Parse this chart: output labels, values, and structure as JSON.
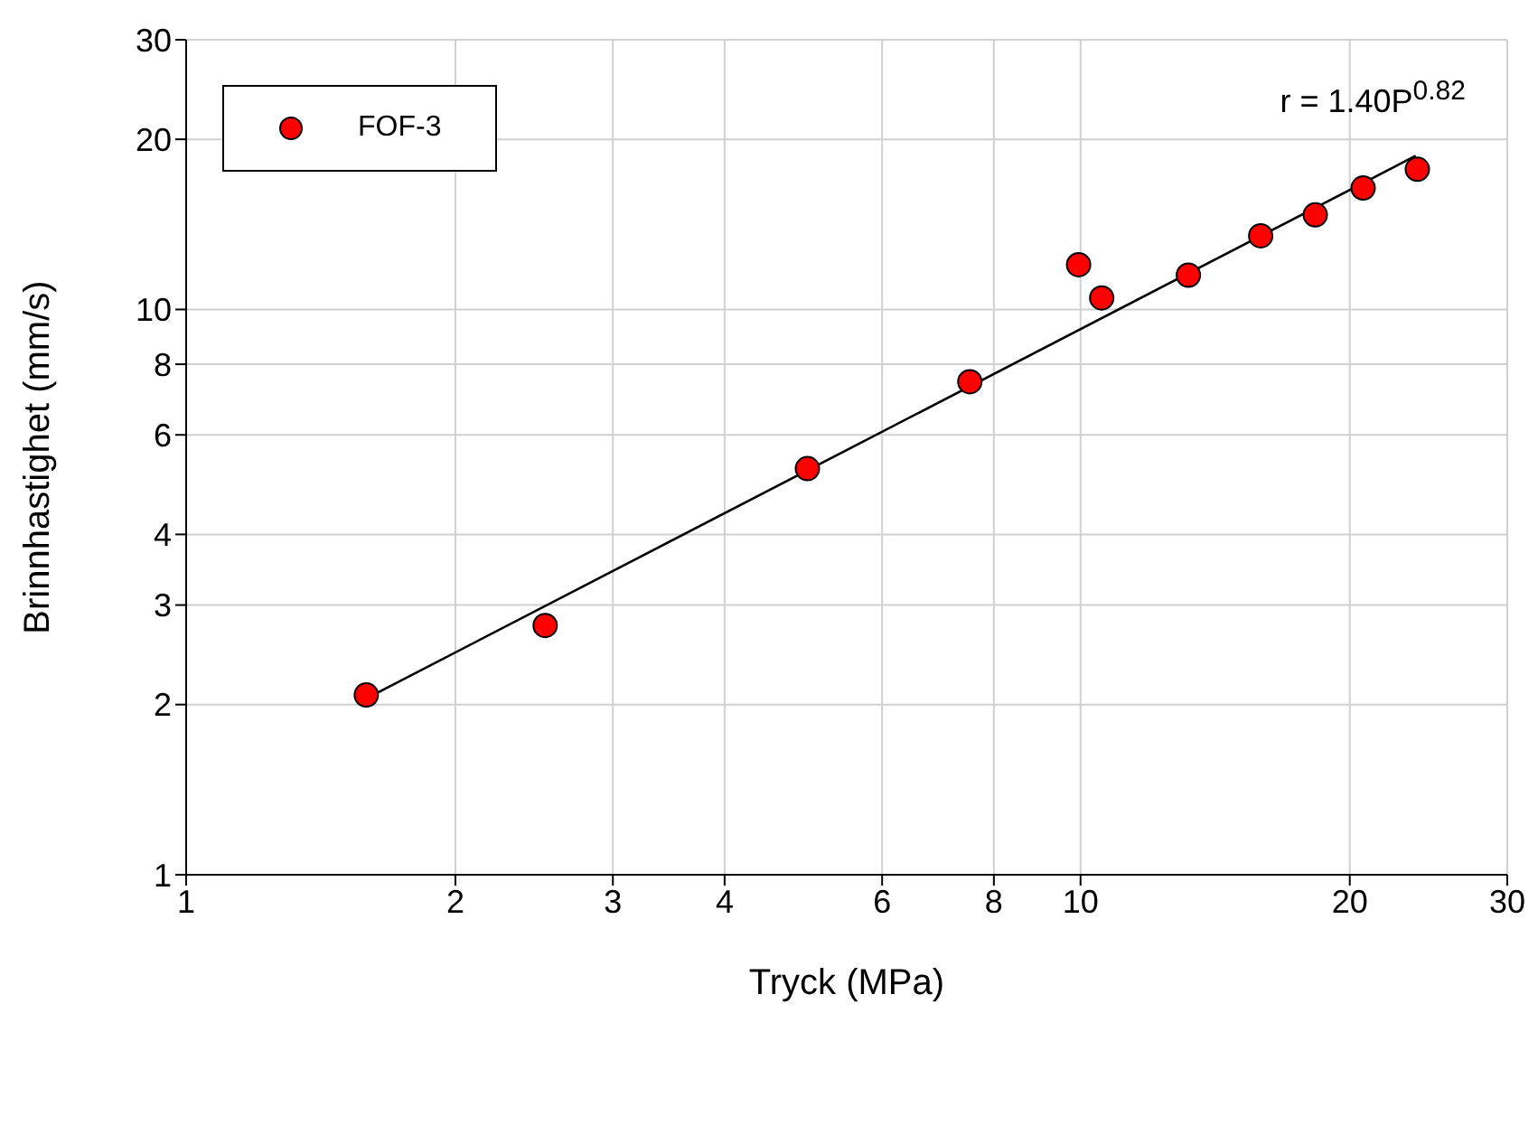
{
  "chart_data": {
    "type": "scatter",
    "xlabel": "Tryck (MPa)",
    "ylabel": "Brinnhastighet (mm/s)",
    "annotations": [
      "r = 1.40P$^{0.82}$"
    ],
    "log": "xy",
    "xlim": [
      1,
      30
    ],
    "ylim": [
      1,
      30
    ],
    "xticks": [
      1,
      2,
      3,
      4,
      6,
      8,
      10,
      20,
      30
    ],
    "yticks": [
      1,
      2,
      3,
      4,
      6,
      8,
      10,
      20,
      30
    ],
    "grid": true,
    "legend": "top left",
    "series": [
      {
        "name": "FOF-3",
        "color": "#ff0000",
        "marker": "circle",
        "x": [
          1.59,
          2.52,
          4.95,
          7.52,
          9.95,
          10.56,
          13.2,
          15.9,
          18.3,
          20.7,
          23.8
        ],
        "values": [
          2.08,
          2.76,
          5.23,
          7.45,
          12.0,
          10.48,
          11.5,
          13.5,
          14.7,
          16.4,
          17.7
        ]
      },
      {
        "type": "line",
        "color": "#000000",
        "marker": "none",
        "line_style": "solid",
        "x": [
          1.59,
          23.7
        ],
        "values": [
          2.05,
          18.7
        ]
      }
    ]
  }
}
